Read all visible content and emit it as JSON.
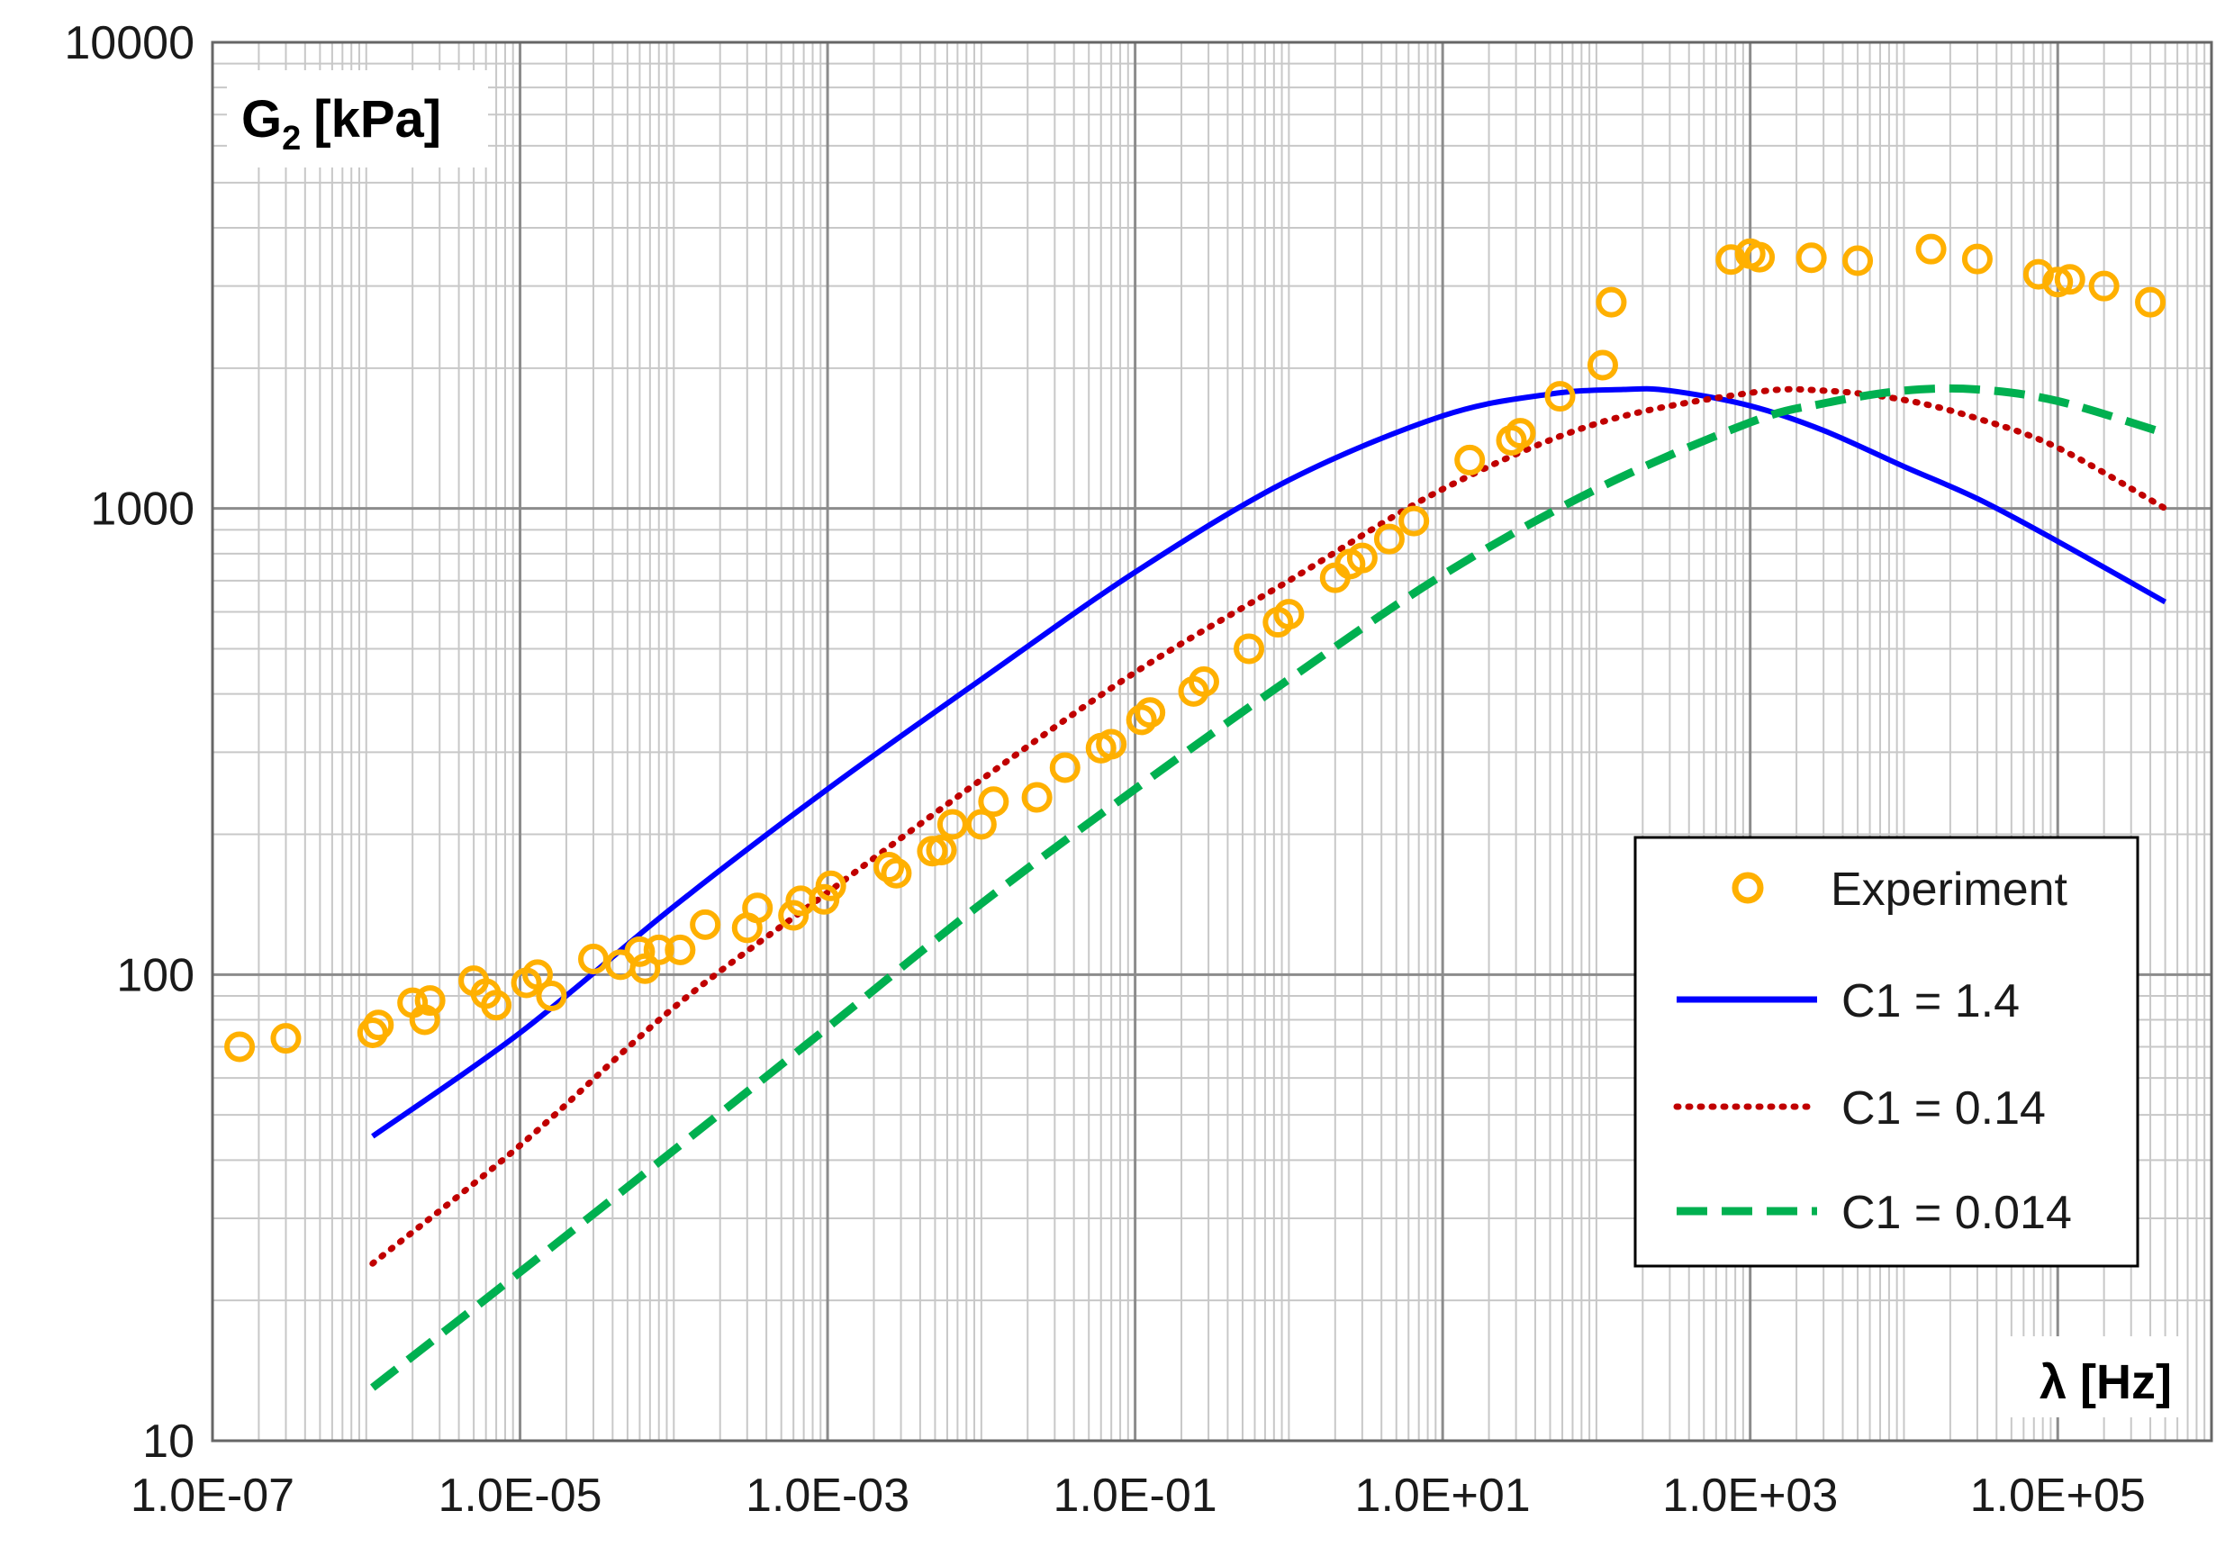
{
  "chart_data": {
    "type": "line",
    "xscale": "log",
    "yscale": "log",
    "xlim": [
      1e-07,
      1000000.0
    ],
    "ylim": [
      10,
      10000
    ],
    "grid": true,
    "legend_position": "bottom-right",
    "ylabel_main": "G",
    "ylabel_sub": "2",
    "ylabel_unit": "[kPa]",
    "xlabel": "λ [Hz]",
    "x_tick_labels": [
      "1.0E-07",
      "1.0E-05",
      "1.0E-03",
      "1.0E-01",
      "1.0E+01",
      "1.0E+03",
      "1.0E+05"
    ],
    "y_tick_labels": [
      "10",
      "100",
      "1000",
      "10000"
    ],
    "series": [
      {
        "name": "Experiment",
        "style": "markers",
        "color": "#FFB000",
        "points": [
          [
            1.5e-07,
            70
          ],
          [
            3e-07,
            73
          ],
          [
            1.1e-06,
            75
          ],
          [
            1.2e-06,
            78
          ],
          [
            2e-06,
            87
          ],
          [
            2.4e-06,
            80
          ],
          [
            2.6e-06,
            88
          ],
          [
            5e-06,
            97
          ],
          [
            6e-06,
            91
          ],
          [
            7e-06,
            86
          ],
          [
            1.1e-05,
            96
          ],
          [
            1.3e-05,
            100
          ],
          [
            1.6e-05,
            90
          ],
          [
            3e-05,
            108
          ],
          [
            4.5e-05,
            105
          ],
          [
            6e-05,
            112
          ],
          [
            6.5e-05,
            103
          ],
          [
            8e-05,
            113
          ],
          [
            0.00011,
            113
          ],
          [
            0.00016,
            128
          ],
          [
            0.0003,
            126
          ],
          [
            0.00035,
            139
          ],
          [
            0.0006,
            134
          ],
          [
            0.00067,
            144
          ],
          [
            0.00095,
            145
          ],
          [
            0.00105,
            155
          ],
          [
            0.0025,
            170
          ],
          [
            0.0028,
            165
          ],
          [
            0.0048,
            184
          ],
          [
            0.0055,
            185
          ],
          [
            0.0065,
            210
          ],
          [
            0.01,
            210
          ],
          [
            0.012,
            235
          ],
          [
            0.023,
            240
          ],
          [
            0.035,
            278
          ],
          [
            0.06,
            306
          ],
          [
            0.07,
            312
          ],
          [
            0.11,
            352
          ],
          [
            0.125,
            365
          ],
          [
            0.24,
            405
          ],
          [
            0.28,
            425
          ],
          [
            0.55,
            500
          ],
          [
            0.85,
            570
          ],
          [
            1.0,
            593
          ],
          [
            2.0,
            710
          ],
          [
            2.5,
            760
          ],
          [
            3.0,
            783
          ],
          [
            4.5,
            860
          ],
          [
            6.5,
            940
          ],
          [
            15,
            1270
          ],
          [
            28,
            1400
          ],
          [
            32,
            1450
          ],
          [
            58,
            1740
          ],
          [
            110,
            2030
          ],
          [
            125,
            2770
          ],
          [
            750,
            3420
          ],
          [
            1000,
            3520
          ],
          [
            1150,
            3460
          ],
          [
            2500,
            3450
          ],
          [
            5000,
            3400
          ],
          [
            15000,
            3600
          ],
          [
            30000,
            3430
          ],
          [
            75000,
            3180
          ],
          [
            100000,
            3060
          ],
          [
            120000,
            3100
          ],
          [
            200000,
            3000
          ],
          [
            400000,
            2770
          ]
        ]
      },
      {
        "name": "C1 = 1.4",
        "style": "solid",
        "color": "#0000FF",
        "points": [
          [
            1.1e-06,
            45
          ],
          [
            1e-05,
            75
          ],
          [
            0.0001,
            140
          ],
          [
            0.001,
            250
          ],
          [
            0.01,
            430
          ],
          [
            0.1,
            730
          ],
          [
            1,
            1150
          ],
          [
            10,
            1580
          ],
          [
            50,
            1760
          ],
          [
            150,
            1800
          ],
          [
            300,
            1790
          ],
          [
            1000,
            1660
          ],
          [
            3000,
            1470
          ],
          [
            10000,
            1230
          ],
          [
            30000,
            1050
          ],
          [
            100000,
            850
          ],
          [
            500000,
            630
          ]
        ]
      },
      {
        "name": "C1 = 0.14",
        "style": "dotted",
        "color": "#C00000",
        "points": [
          [
            1.1e-06,
            24
          ],
          [
            1e-05,
            43
          ],
          [
            0.0001,
            85
          ],
          [
            0.001,
            150
          ],
          [
            0.01,
            262
          ],
          [
            0.1,
            445
          ],
          [
            1,
            700
          ],
          [
            10,
            1100
          ],
          [
            100,
            1520
          ],
          [
            1000,
            1770
          ],
          [
            3000,
            1790
          ],
          [
            10000,
            1710
          ],
          [
            30000,
            1560
          ],
          [
            100000,
            1350
          ],
          [
            500000,
            1000
          ]
        ]
      },
      {
        "name": "C1 = 0.014",
        "style": "dashed",
        "color": "#00B050",
        "points": [
          [
            1.1e-06,
            13
          ],
          [
            1e-05,
            23
          ],
          [
            0.0001,
            42
          ],
          [
            0.001,
            77
          ],
          [
            0.01,
            142
          ],
          [
            0.1,
            250
          ],
          [
            1,
            430
          ],
          [
            10,
            720
          ],
          [
            100,
            1100
          ],
          [
            1000,
            1530
          ],
          [
            3000,
            1680
          ],
          [
            10000,
            1790
          ],
          [
            30000,
            1800
          ],
          [
            100000,
            1700
          ],
          [
            500000,
            1450
          ]
        ]
      }
    ]
  }
}
